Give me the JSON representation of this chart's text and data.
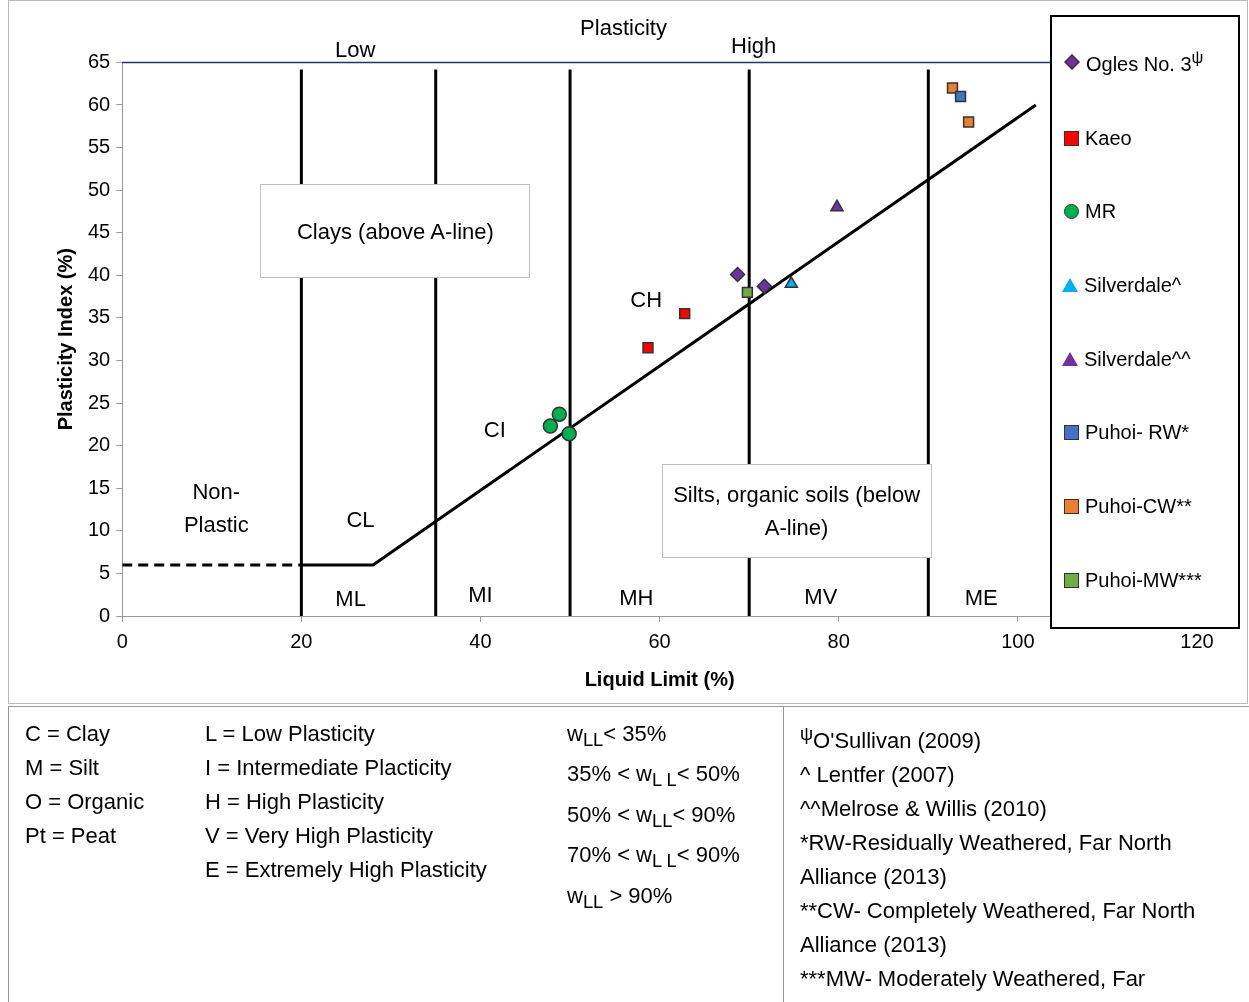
{
  "chart_data": {
    "type": "scatter",
    "title": "Plasticity",
    "xlabel": "Liquid Limit (%)",
    "ylabel": "Plasticity Index (%)",
    "xlim": [
      0,
      120
    ],
    "xticks": [
      0,
      20,
      40,
      60,
      80,
      100,
      120
    ],
    "ylim": [
      0,
      65
    ],
    "yticks": [
      0,
      5,
      10,
      15,
      20,
      25,
      30,
      35,
      40,
      45,
      50,
      55,
      60,
      65
    ],
    "grid": false,
    "legend": "right",
    "series": [
      {
        "name": "Ogles No. 3$^{ψ}$",
        "type": "scatter",
        "marker": "diamond",
        "color": "#7030a0",
        "x": [
          68.7,
          71.7
        ],
        "values": [
          40.1,
          38.7
        ]
      },
      {
        "name": "Kaeo",
        "type": "scatter",
        "marker": "square",
        "color": "#ff0000",
        "x": [
          58.7,
          62.8
        ],
        "values": [
          31.5,
          35.5
        ]
      },
      {
        "name": "MR",
        "type": "scatter",
        "marker": "circle",
        "color": "#00b050",
        "x": [
          47.8,
          48.8,
          49.9
        ],
        "values": [
          22.3,
          23.7,
          21.4
        ]
      },
      {
        "name": "Silverdale^",
        "type": "scatter",
        "marker": "triangle",
        "color": "#00b0f0",
        "x": [
          74.7
        ],
        "values": [
          39.0
        ]
      },
      {
        "name": "Silverdale^^",
        "type": "scatter",
        "marker": "triangle",
        "color": "#7030a0",
        "x": [
          79.8
        ],
        "values": [
          48.0
        ]
      },
      {
        "name": "Puhoi- RW*",
        "type": "scatter",
        "marker": "square",
        "color": "#4472c4",
        "x": [
          93.6
        ],
        "values": [
          61.0
        ]
      },
      {
        "name": "Puhoi-CW**",
        "type": "scatter",
        "marker": "square",
        "color": "#ed7d31",
        "x": [
          92.7,
          94.5
        ],
        "values": [
          62.0,
          58.0
        ]
      },
      {
        "name": "Puhoi-MW***",
        "type": "scatter",
        "marker": "square",
        "color": "#70ad47",
        "x": [
          69.8
        ],
        "values": [
          38.0
        ]
      },
      {
        "type": "line",
        "marker": "none",
        "line_style": "dashed",
        "color": "#000000",
        "x": [
          0,
          20
        ],
        "values": [
          6,
          6
        ]
      },
      {
        "type": "line",
        "marker": "none",
        "line_style": "solid",
        "color": "#000000",
        "x": [
          20,
          28,
          102
        ],
        "values": [
          6,
          6,
          60
        ]
      }
    ],
    "ref_lines": [
      {
        "axis": "x",
        "value": 20,
        "color": "#000000"
      },
      {
        "axis": "x",
        "value": 35,
        "color": "#000000"
      },
      {
        "axis": "x",
        "value": 50,
        "color": "#000000"
      },
      {
        "axis": "x",
        "value": 70,
        "color": "#000000"
      },
      {
        "axis": "x",
        "value": 90,
        "color": "#000000"
      }
    ],
    "annotations": [
      "Clays (above A-line)",
      "Silts, organic soils (below A-line)",
      "CH",
      "CI",
      "CL",
      "Non-Plastic",
      "ML",
      "MI",
      "MH",
      "MV",
      "ME",
      "Low",
      "High",
      "C = Clay",
      "M = Silt",
      "O = Organic",
      "Pt = Peat",
      "L = Low Plasticity",
      "I = Intermediate Placticity",
      "H = High Plasticity",
      "V = Very High Plasticity",
      "E = Extremely High Plasticity",
      "w$_{LL}$< 35%",
      "35% < w$_{L L}$< 50%",
      "50% < w$_{LL}$< 90%",
      "70% < w$_{L L}$< 90%",
      "w$_{LL}$ > 90%",
      "$^{ψ}$O'Sullivan (2009)",
      "^ Lentfer (2007)",
      "^^Melrose & Willis (2010)",
      "*RW-Residually Weathered, Far North Alliance (2013)",
      "**CW- Completely Weathered, Far North Alliance (2013)",
      "***MW- Moderately Weathered, Far"
    ]
  }
}
